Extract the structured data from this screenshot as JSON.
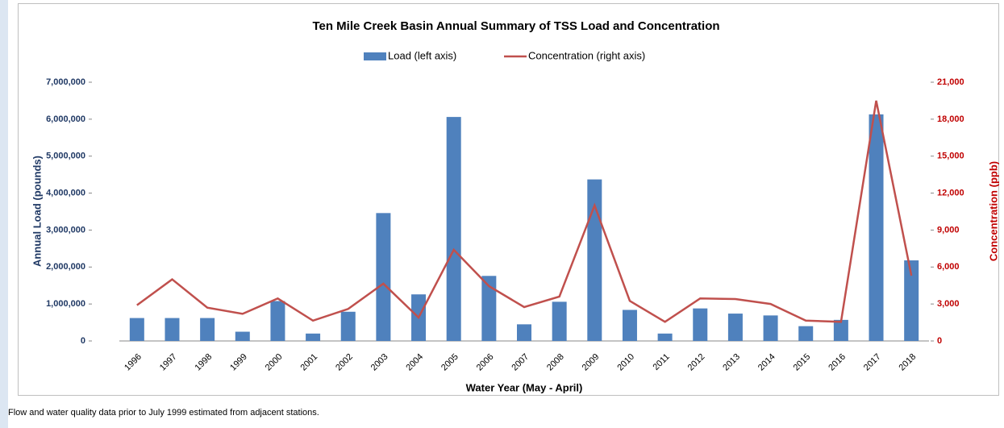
{
  "chart_data": {
    "type": "bar-line",
    "title": "Ten Mile Creek Basin Annual Summary of TSS Load and Concentration",
    "xlabel": "Water Year (May - April)",
    "ylabel": "Annual Load (pounds)",
    "y2label": "Concentration (ppb)",
    "footnote": "Flow and water quality data prior to July 1999 estimated from adjacent stations.",
    "categories": [
      "1996",
      "1997",
      "1998",
      "1999",
      "2000",
      "2001",
      "2002",
      "2003",
      "2004",
      "2005",
      "2006",
      "2007",
      "2008",
      "2009",
      "2010",
      "2011",
      "2012",
      "2013",
      "2014",
      "2015",
      "2016",
      "2017",
      "2018"
    ],
    "series": [
      {
        "name": "Load (left axis)",
        "type": "bar",
        "color": "#4f81bd",
        "values": [
          620000,
          620000,
          620000,
          250000,
          1080000,
          200000,
          790000,
          3460000,
          1260000,
          6060000,
          1760000,
          450000,
          1060000,
          4370000,
          840000,
          200000,
          880000,
          740000,
          690000,
          400000,
          570000,
          6130000,
          2180000
        ]
      },
      {
        "name": "Concentration (right axis)",
        "type": "line",
        "axis": "y2",
        "color": "#c0504d",
        "values": [
          2900,
          5000,
          2700,
          2200,
          3450,
          1650,
          2600,
          4650,
          1900,
          7400,
          4450,
          2750,
          3600,
          11000,
          3250,
          1550,
          3450,
          3400,
          3000,
          1650,
          1550,
          19500,
          5300
        ]
      }
    ],
    "ylim": [
      0,
      7000000
    ],
    "yticks": [
      0,
      {
        "value": 1000000,
        "label": "1,000,000"
      },
      {
        "value": 2000000,
        "label": "2,000,000"
      },
      {
        "value": 3000000,
        "label": "3,000,000"
      },
      {
        "value": 4000000,
        "label": "4,000,000"
      },
      {
        "value": 5000000,
        "label": "5,000,000"
      },
      {
        "value": 6000000,
        "label": "6,000,000"
      },
      {
        "value": 7000000,
        "label": "7,000,000"
      }
    ],
    "y2lim": [
      0,
      21000
    ],
    "y2ticks": [
      0,
      {
        "value": 3000,
        "label": "3,000"
      },
      {
        "value": 6000,
        "label": "6,000"
      },
      {
        "value": 9000,
        "label": "9,000"
      },
      {
        "value": 12000,
        "label": "12,000"
      },
      {
        "value": 15000,
        "label": "15,000"
      },
      {
        "value": 18000,
        "label": "18,000"
      },
      {
        "value": 21000,
        "label": "21,000"
      }
    ],
    "legend": "top"
  }
}
